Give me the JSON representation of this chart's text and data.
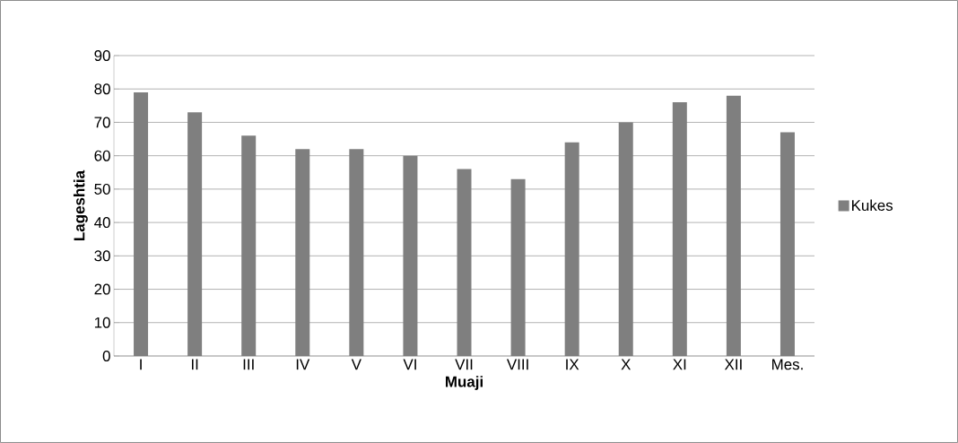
{
  "chart_data": {
    "type": "bar",
    "xlabel": "Muaji",
    "ylabel": "Lageshtia",
    "categories": [
      "I",
      "II",
      "III",
      "IV",
      "V",
      "VI",
      "VII",
      "VIII",
      "IX",
      "X",
      "XI",
      "XII",
      "Mes."
    ],
    "series": [
      {
        "name": "Kukes",
        "color": "#7f7f7f",
        "values": [
          79,
          73,
          66,
          62,
          62,
          60,
          56,
          53,
          64,
          70,
          76,
          78,
          67
        ]
      }
    ],
    "ylim": [
      0,
      90
    ],
    "yticks": [
      0,
      10,
      20,
      30,
      40,
      50,
      60,
      70,
      80,
      90
    ],
    "grid": "y",
    "legend": "right"
  }
}
